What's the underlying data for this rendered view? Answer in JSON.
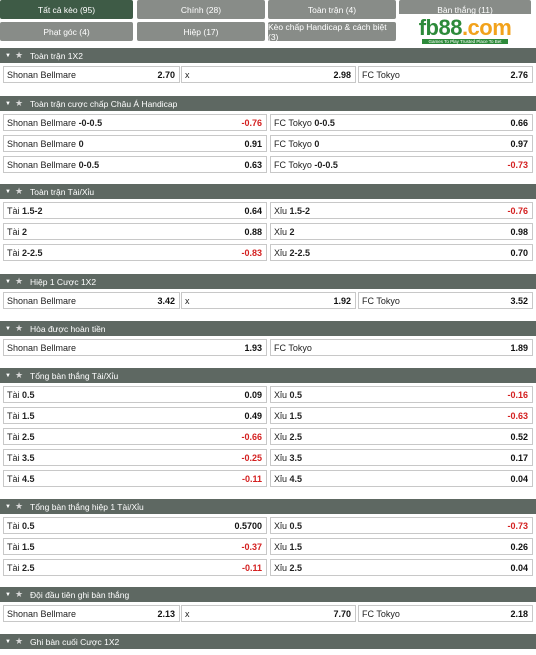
{
  "tabs": [
    {
      "label": "Tất cả kèo (95)",
      "active": true
    },
    {
      "label": "Chính (28)",
      "active": false
    },
    {
      "label": "Toàn trận (4)",
      "active": false
    },
    {
      "label": "Bàn thắng (11)",
      "active": false
    },
    {
      "label": "Phạt góc (4)",
      "active": false
    },
    {
      "label": "Hiệp (17)",
      "active": false
    },
    {
      "label": "Kèo chấp Handicap & cách biệt (3)",
      "active": false
    }
  ],
  "logo": {
    "main": "fb88",
    "suffix": ".com",
    "tagline": "Games To Play  Trusted Place To Bet"
  },
  "sections": [
    {
      "title": "Toàn trận 1X2",
      "rows": [
        [
          {
            "team": "Shonan Bellmare",
            "line": "",
            "odds": "2.70"
          },
          {
            "team": "x",
            "line": "",
            "odds": "2.98"
          },
          {
            "team": "FC Tokyo",
            "line": "",
            "odds": "2.76"
          }
        ]
      ]
    },
    {
      "title": "Toàn trận cược chấp Châu Á Handicap",
      "rows": [
        [
          {
            "team": "Shonan Bellmare",
            "line": "-0-0.5",
            "odds": "-0.76"
          },
          {
            "team": "FC Tokyo",
            "line": "0-0.5",
            "odds": "0.66"
          }
        ],
        [
          {
            "team": "Shonan Bellmare",
            "line": "0",
            "odds": "0.91"
          },
          {
            "team": "FC Tokyo",
            "line": "0",
            "odds": "0.97"
          }
        ],
        [
          {
            "team": "Shonan Bellmare",
            "line": "0-0.5",
            "odds": "0.63"
          },
          {
            "team": "FC Tokyo",
            "line": "-0-0.5",
            "odds": "-0.73"
          }
        ]
      ]
    },
    {
      "title": "Toàn trận Tài/Xỉu",
      "rows": [
        [
          {
            "team": "Tài",
            "line": "1.5-2",
            "odds": "0.64"
          },
          {
            "team": "Xỉu",
            "line": "1.5-2",
            "odds": "-0.76"
          }
        ],
        [
          {
            "team": "Tài",
            "line": "2",
            "odds": "0.88"
          },
          {
            "team": "Xỉu",
            "line": "2",
            "odds": "0.98"
          }
        ],
        [
          {
            "team": "Tài",
            "line": "2-2.5",
            "odds": "-0.83"
          },
          {
            "team": "Xỉu",
            "line": "2-2.5",
            "odds": "0.70"
          }
        ]
      ]
    },
    {
      "title": "Hiệp 1 Cược 1X2",
      "rows": [
        [
          {
            "team": "Shonan Bellmare",
            "line": "",
            "odds": "3.42"
          },
          {
            "team": "x",
            "line": "",
            "odds": "1.92"
          },
          {
            "team": "FC Tokyo",
            "line": "",
            "odds": "3.52"
          }
        ]
      ]
    },
    {
      "title": "Hòa được hoàn tiền",
      "rows": [
        [
          {
            "team": "Shonan Bellmare",
            "line": "",
            "odds": "1.93"
          },
          {
            "team": "FC Tokyo",
            "line": "",
            "odds": "1.89"
          }
        ]
      ]
    },
    {
      "title": "Tổng bàn thắng Tài/Xỉu",
      "rows": [
        [
          {
            "team": "Tài",
            "line": "0.5",
            "odds": "0.09"
          },
          {
            "team": "Xỉu",
            "line": "0.5",
            "odds": "-0.16"
          }
        ],
        [
          {
            "team": "Tài",
            "line": "1.5",
            "odds": "0.49"
          },
          {
            "team": "Xỉu",
            "line": "1.5",
            "odds": "-0.63"
          }
        ],
        [
          {
            "team": "Tài",
            "line": "2.5",
            "odds": "-0.66"
          },
          {
            "team": "Xỉu",
            "line": "2.5",
            "odds": "0.52"
          }
        ],
        [
          {
            "team": "Tài",
            "line": "3.5",
            "odds": "-0.25"
          },
          {
            "team": "Xỉu",
            "line": "3.5",
            "odds": "0.17"
          }
        ],
        [
          {
            "team": "Tài",
            "line": "4.5",
            "odds": "-0.11"
          },
          {
            "team": "Xỉu",
            "line": "4.5",
            "odds": "0.04"
          }
        ]
      ]
    },
    {
      "title": "Tổng bàn thắng hiệp 1 Tài/Xỉu",
      "rows": [
        [
          {
            "team": "Tài",
            "line": "0.5",
            "odds": "0.5700"
          },
          {
            "team": "Xỉu",
            "line": "0.5",
            "odds": "-0.73"
          }
        ],
        [
          {
            "team": "Tài",
            "line": "1.5",
            "odds": "-0.37"
          },
          {
            "team": "Xỉu",
            "line": "1.5",
            "odds": "0.26"
          }
        ],
        [
          {
            "team": "Tài",
            "line": "2.5",
            "odds": "-0.11"
          },
          {
            "team": "Xỉu",
            "line": "2.5",
            "odds": "0.04"
          }
        ]
      ]
    },
    {
      "title": "Đội đầu tiên ghi bàn thắng",
      "rows": [
        [
          {
            "team": "Shonan Bellmare",
            "line": "",
            "odds": "2.13"
          },
          {
            "team": "x",
            "line": "",
            "odds": "7.70"
          },
          {
            "team": "FC Tokyo",
            "line": "",
            "odds": "2.18"
          }
        ]
      ]
    },
    {
      "title": "Ghi bàn cuối Cược 1X2",
      "rows": []
    }
  ],
  "icons": {
    "caret": "caret-down-icon",
    "star": "star-icon"
  },
  "colors": {
    "header_bg": "#5e6862",
    "tab_bg": "#888c88",
    "tab_active_bg": "#3e5b46",
    "negative": "#d42020",
    "brand_green": "#2d8a3a"
  }
}
